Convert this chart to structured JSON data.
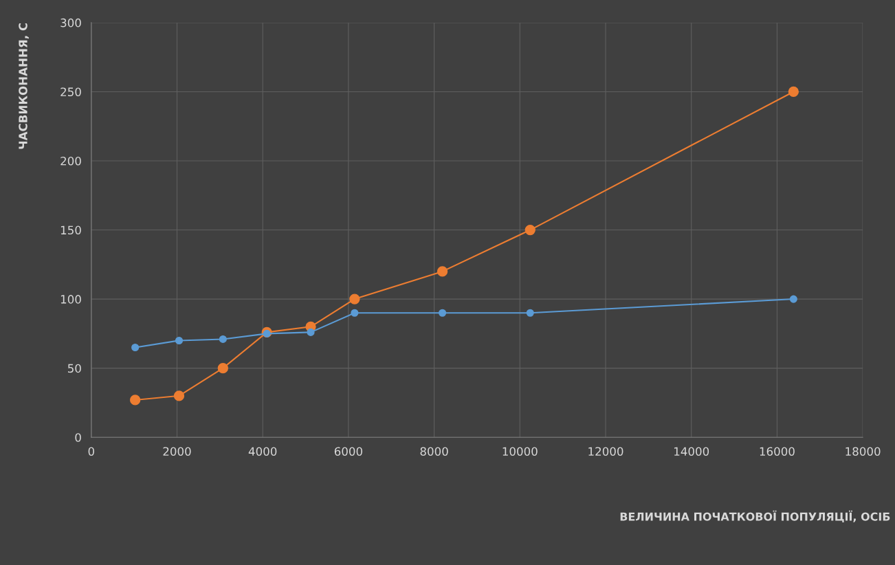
{
  "chart_data": {
    "type": "line",
    "xlabel": "ВЕЛИЧИНА ПОЧАТКОВОЇ ПОПУЛЯЦІЇ, ОСІБ",
    "ylabel": "ЧАСВИКОНАННЯ, С",
    "x": [
      1024,
      2048,
      3072,
      4096,
      5120,
      6144,
      8192,
      10240,
      16384
    ],
    "series": [
      {
        "color": "#5b9bd5",
        "values": [
          65,
          70,
          71,
          75,
          76,
          90,
          90,
          90,
          100
        ]
      },
      {
        "color": "#ed7d31",
        "values": [
          27,
          30,
          50,
          76,
          80,
          100,
          120,
          150,
          250
        ]
      }
    ],
    "xlim": [
      0,
      18000
    ],
    "xticks": [
      0,
      2000,
      4000,
      6000,
      8000,
      10000,
      12000,
      14000,
      16000,
      18000
    ],
    "ylim": [
      0,
      300
    ],
    "yticks": [
      0,
      50,
      100,
      150,
      200,
      250,
      300
    ],
    "grid": true,
    "marker": "circle",
    "line_style": "solid"
  }
}
